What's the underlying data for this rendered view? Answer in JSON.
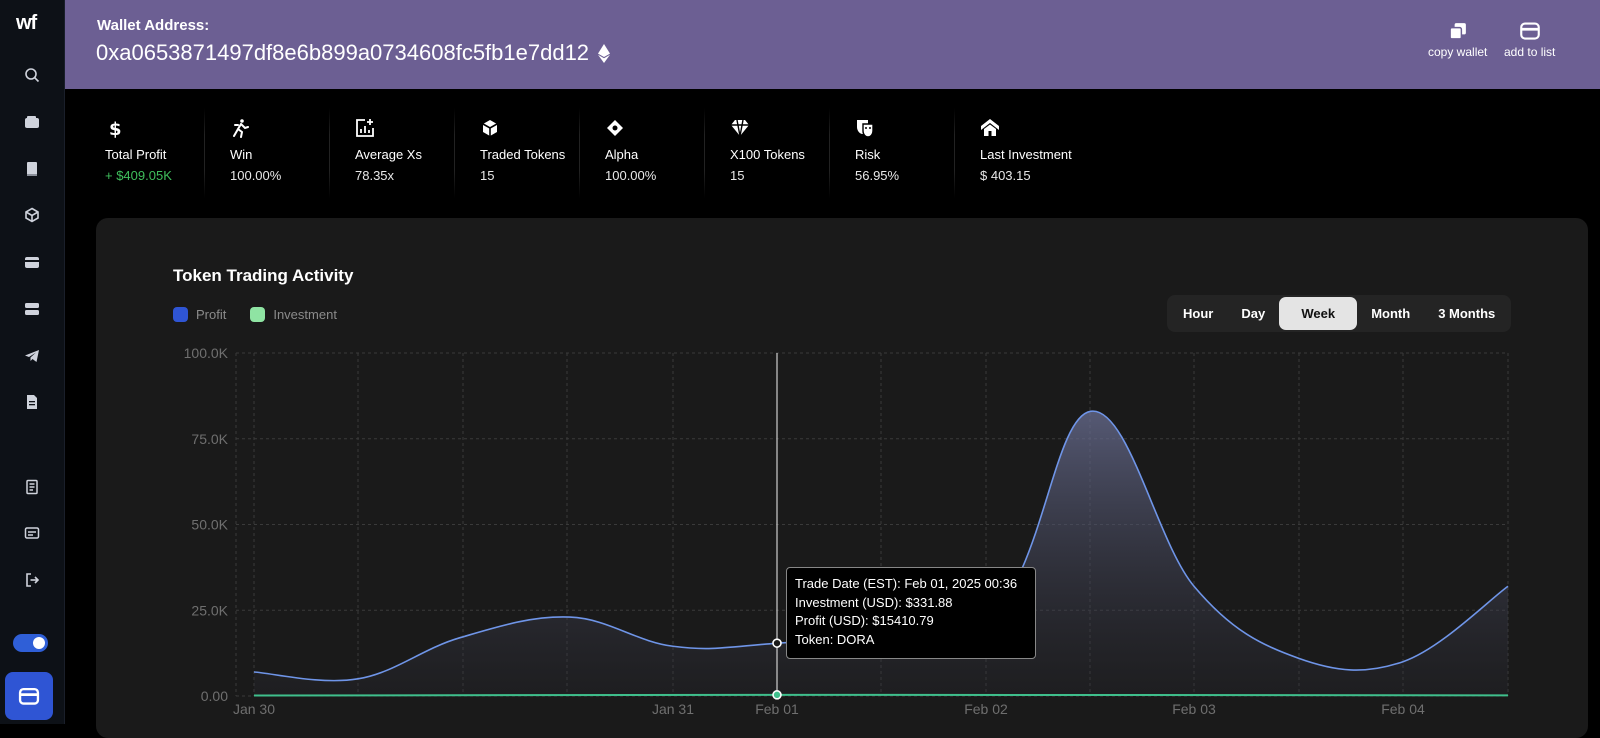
{
  "brand": {
    "logo": "wf"
  },
  "header": {
    "label": "Wallet Address:",
    "address": "0xa0653871497df8e6b899a0734608fc5fb1e7dd12",
    "actions": [
      {
        "label": "copy wallet",
        "icon": "copy-icon"
      },
      {
        "label": "add to list",
        "icon": "wallet-icon"
      }
    ]
  },
  "stats": [
    {
      "name": "Total Profit",
      "value": "+ $409.05K",
      "icon": "dollar-icon"
    },
    {
      "name": "Win",
      "value": "100.00%",
      "icon": "running-icon"
    },
    {
      "name": "Average Xs",
      "value": "78.35x",
      "icon": "chart-plus-icon"
    },
    {
      "name": "Traded Tokens",
      "value": "15",
      "icon": "cube-icon"
    },
    {
      "name": "Alpha",
      "value": "100.00%",
      "icon": "diamond-icon"
    },
    {
      "name": "X100 Tokens",
      "value": "15",
      "icon": "gem-icon"
    },
    {
      "name": "Risk",
      "value": "56.95%",
      "icon": "masks-icon"
    },
    {
      "name": "Last Investment",
      "value": "$ 403.15",
      "icon": "house-icon"
    }
  ],
  "panel": {
    "title": "Token Trading Activity",
    "legend": [
      {
        "name": "Profit",
        "color": "#2f55d4"
      },
      {
        "name": "Investment",
        "color": "#8fe4a3"
      }
    ],
    "ranges": [
      "Hour",
      "Day",
      "Week",
      "Month",
      "3 Months"
    ],
    "active_range": "Week"
  },
  "chart_data": {
    "type": "area",
    "x_ticks": [
      "Jan 30",
      "Jan 31",
      "Feb 01",
      "Feb 02",
      "Feb 03",
      "Feb 04"
    ],
    "y_ticks": [
      "0.00",
      "25.0K",
      "50.0K",
      "75.0K",
      "100.0K"
    ],
    "ylim": [
      0,
      100000
    ],
    "grid": true,
    "series": [
      {
        "name": "Profit",
        "color": "#6f95e8",
        "points": [
          [
            "Jan 30",
            7000
          ],
          [
            "Jan 30 12:00",
            5000
          ],
          [
            "Jan 30 18:00",
            17000
          ],
          [
            "Jan 31 00:00",
            23000
          ],
          [
            "Jan 31",
            14500
          ],
          [
            "Feb 01",
            15410.79
          ],
          [
            "Feb 02 00:00",
            22000
          ],
          [
            "Feb 02 12:00",
            83000
          ],
          [
            "Feb 03",
            32000
          ],
          [
            "Feb 03 12:00",
            11000
          ],
          [
            "Feb 04",
            10000
          ],
          [
            "Feb 04 12:00",
            32000
          ]
        ]
      },
      {
        "name": "Investment",
        "color": "#3fbf8c",
        "points": [
          [
            "Jan 30",
            150
          ],
          [
            "Feb 01",
            331.88
          ],
          [
            "Feb 04 12:00",
            200
          ]
        ]
      }
    ],
    "tooltip": {
      "lines": [
        "Trade Date (EST): Feb 01, 2025 00:36",
        "Investment (USD): $331.88",
        "Profit (USD): $15410.79",
        "Token: DORA"
      ]
    }
  }
}
